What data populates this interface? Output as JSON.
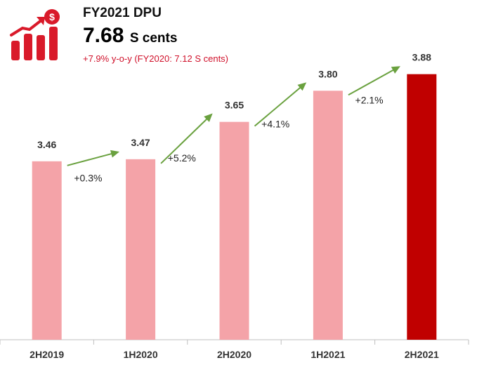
{
  "header": {
    "title": "FY2021 DPU",
    "value": "7.68",
    "unit": "S cents",
    "subtitle": "+7.9% y-o-y (FY2020: 7.12 S cents)",
    "icon": "rising-bar-chart-dollar-icon"
  },
  "colors": {
    "bar_light": "#f4a3a8",
    "bar_highlight": "#c00000",
    "arrow": "#6aa13f",
    "accent_red": "#d0102a",
    "axis": "#bfbfbf"
  },
  "chart_data": {
    "type": "bar",
    "categories": [
      "2H2019",
      "1H2020",
      "2H2020",
      "1H2021",
      "2H2021"
    ],
    "values": [
      3.46,
      3.47,
      3.65,
      3.8,
      3.88
    ],
    "data_labels": [
      "3.46",
      "3.47",
      "3.65",
      "3.80",
      "3.88"
    ],
    "highlight_index": 4,
    "changes": [
      "+0.3%",
      "+5.2%",
      "+4.1%",
      "+2.1%"
    ],
    "ylim": [
      2.6,
      3.96
    ]
  }
}
